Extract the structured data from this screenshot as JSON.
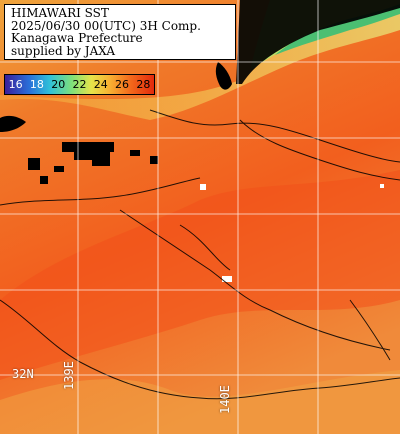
{
  "map": {
    "title_line1": "HIMAWARI SST",
    "title_line2": "2025/06/30 00(UTC) 3H Comp.",
    "title_line3": "Kanagawa Prefecture",
    "title_line4": "supplied by JAXA"
  },
  "legend": {
    "values": [
      "16",
      "18",
      "20",
      "22",
      "24",
      "26",
      "28"
    ],
    "colors": {
      "c16": "#3a1f9a",
      "c18": "#2a6ed8",
      "c20": "#2fc0d9",
      "c22": "#7fe07a",
      "c24": "#e6e34a",
      "c26": "#f7b233",
      "c28": "#e32a0c"
    }
  },
  "grid": {
    "lat_label": "32N",
    "lon_label_139": "139E",
    "lon_label_140": "140E"
  },
  "colors": {
    "land": "#000000",
    "cloud": "#ffffff",
    "sea_warm": "#f25d1c",
    "sea_cool": "#f0a13b",
    "coast_green": "#6fcf6a",
    "contour": "#000000"
  }
}
